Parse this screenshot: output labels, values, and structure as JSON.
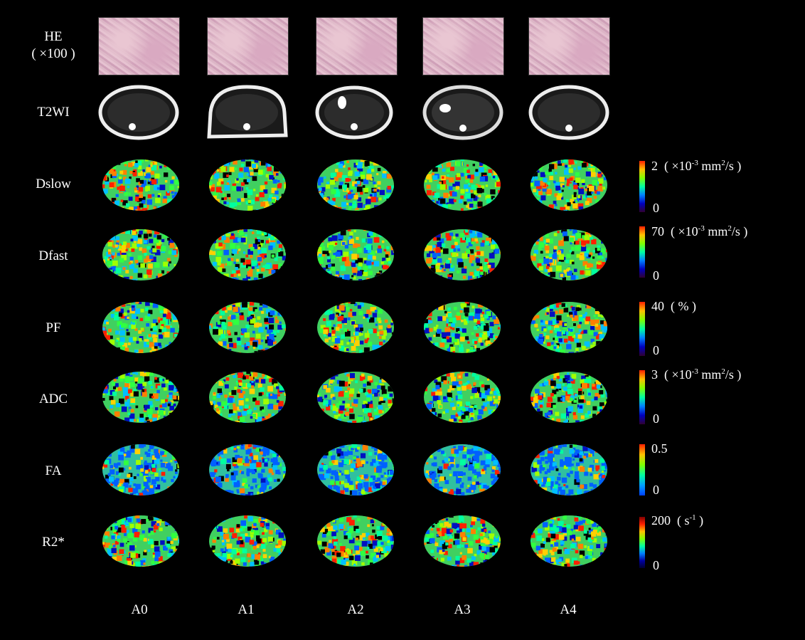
{
  "rows": [
    {
      "label": "HE",
      "sublabel": "( ×100 )"
    },
    {
      "label": "T2WI"
    },
    {
      "label": "Dslow"
    },
    {
      "label": "Dfast"
    },
    {
      "label": "PF"
    },
    {
      "label": "ADC"
    },
    {
      "label": "FA"
    },
    {
      "label": "R2*"
    }
  ],
  "columns": [
    "A0",
    "A1",
    "A2",
    "A3",
    "A4"
  ],
  "colorbars": {
    "dslow": {
      "max_value": "2",
      "unit_prefix": "( ×10",
      "unit_exp": "-3",
      "unit_mid": " mm",
      "unit_sq": "2",
      "unit_suffix": "/s )",
      "min": "0"
    },
    "dfast": {
      "max_value": "70",
      "unit_prefix": "( ×10",
      "unit_exp": "-3",
      "unit_mid": " mm",
      "unit_sq": "2",
      "unit_suffix": "/s )",
      "min": "0"
    },
    "pf": {
      "max_value": "40",
      "unit": "( % )",
      "min": "0"
    },
    "adc": {
      "max_value": "3",
      "unit_prefix": "( ×10",
      "unit_exp": "-3",
      "unit_mid": " mm",
      "unit_sq": "2",
      "unit_suffix": "/s )",
      "min": "0"
    },
    "fa": {
      "max_value": "0.5",
      "min": "0"
    },
    "r2": {
      "max_value": "200",
      "unit_prefix": "( s",
      "unit_exp": "-1",
      "unit_suffix": " )",
      "min": "0"
    }
  },
  "colors": {
    "background": "#000000",
    "text": "#ffffff"
  }
}
